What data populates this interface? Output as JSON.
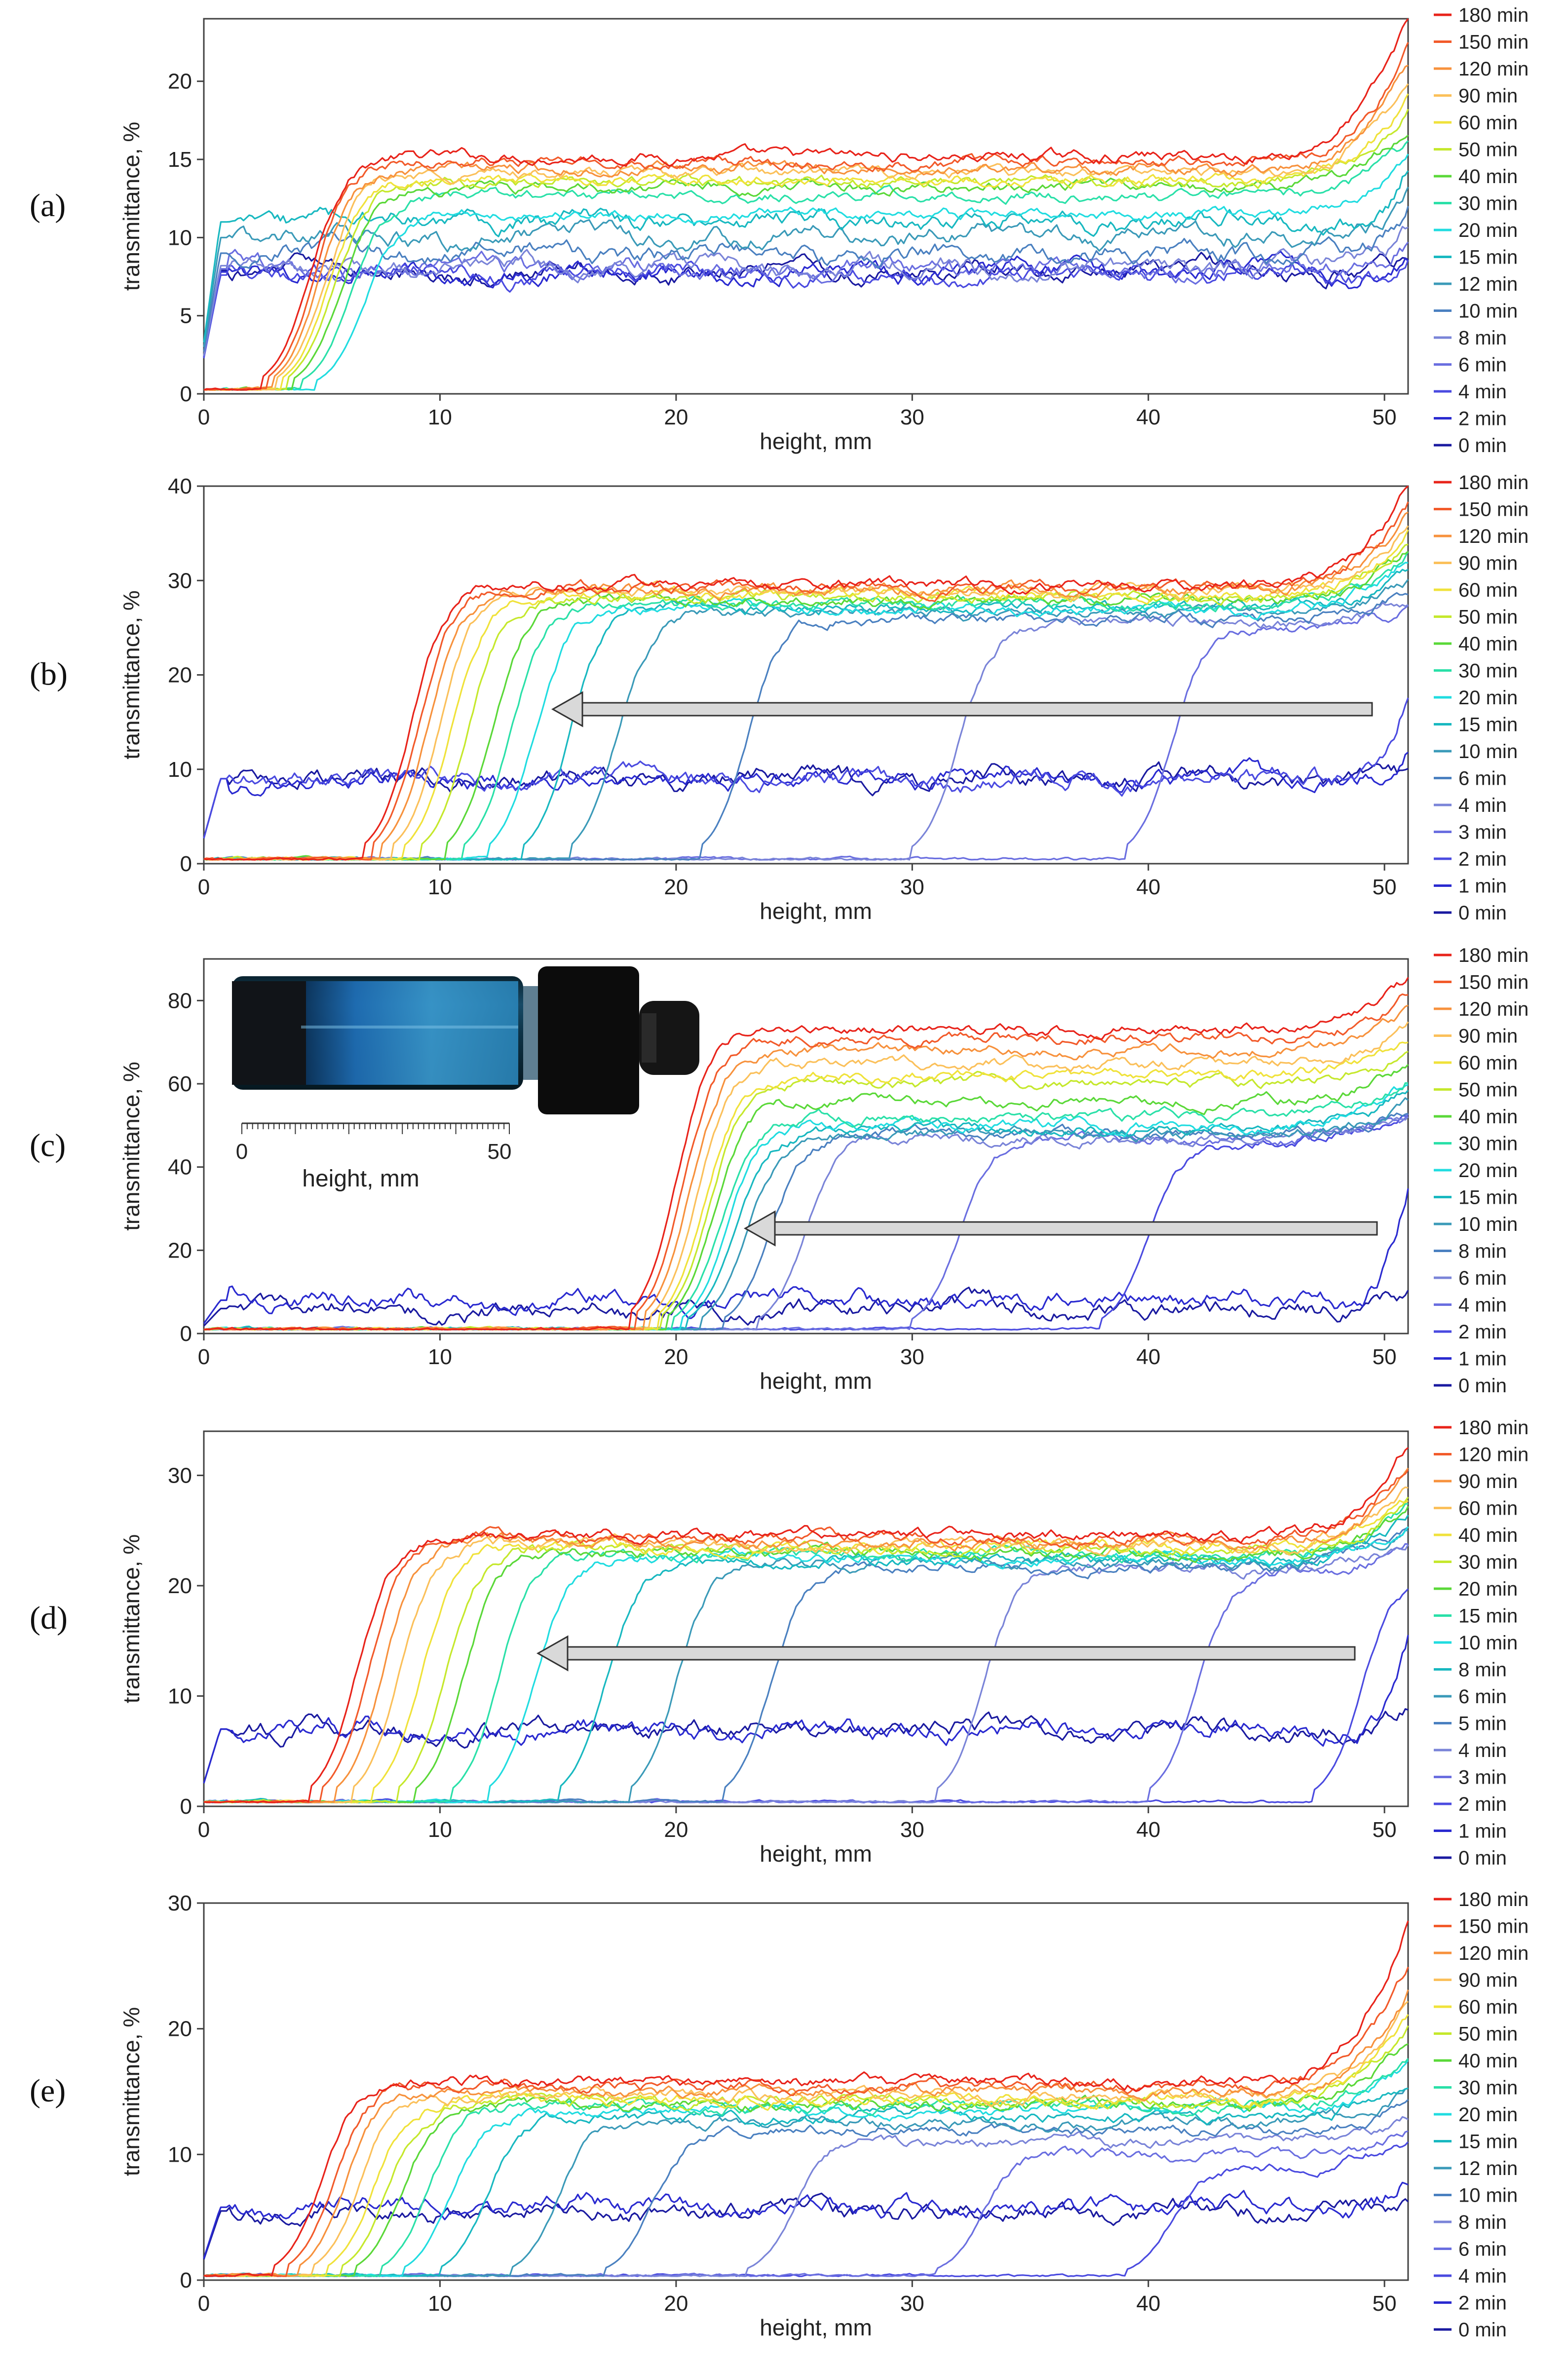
{
  "figure": {
    "panel_labels": [
      "(a)",
      "(b)",
      "(c)",
      "(d)",
      "(e)"
    ],
    "inset": {
      "scale_min": "0",
      "scale_max": "50",
      "scale_label": "height, mm"
    }
  },
  "chart_data": [
    {
      "type": "line",
      "panel": "(a)",
      "xlabel": "height, mm",
      "ylabel": "transmittance, %",
      "xlim": [
        0,
        51
      ],
      "ylim": [
        0,
        24
      ],
      "xticks": [
        0,
        10,
        20,
        30,
        40,
        50
      ],
      "yticks": [
        0,
        5,
        10,
        15,
        20
      ],
      "legend_position": "right",
      "legend": [
        "180 min",
        "150 min",
        "120 min",
        "90 min",
        "60 min",
        "50 min",
        "40 min",
        "30 min",
        "20 min",
        "15 min",
        "12 min",
        "10 min",
        "8 min",
        "6 min",
        "4 min",
        "2 min",
        "0 min"
      ],
      "series_colors": [
        "#e8231a",
        "#f25a2a",
        "#f7913c",
        "#fbc05a",
        "#f0e23a",
        "#c5e82c",
        "#5ad838",
        "#2ae0a8",
        "#20dce0",
        "#18b8c0",
        "#3a9ab8",
        "#4a80c0",
        "#7a84d8",
        "#6a6ee0",
        "#4a4ae0",
        "#2a2ad0",
        "#1a1aa0"
      ],
      "annotation": "",
      "front_x": [
        4.5,
        4.7,
        4.9,
        5.1,
        5.3,
        5.5,
        5.8,
        6.2,
        6.8,
        null,
        null,
        null,
        null,
        null,
        null,
        null,
        null
      ],
      "plateau_y": [
        15.2,
        14.8,
        14.4,
        14.1,
        13.7,
        13.5,
        13.2,
        12.7,
        11.5,
        11.0,
        10.0,
        9.0,
        8.2,
        8.0,
        7.6,
        7.8,
        7.9
      ],
      "end_y": [
        24,
        22,
        21,
        20,
        19,
        18,
        17,
        16,
        15,
        14.5,
        13,
        12,
        11,
        10,
        9,
        8.5,
        8
      ]
    },
    {
      "type": "line",
      "panel": "(b)",
      "xlabel": "height, mm",
      "ylabel": "transmittance, %",
      "xlim": [
        0,
        51
      ],
      "ylim": [
        0,
        40
      ],
      "xticks": [
        0,
        10,
        20,
        30,
        40,
        50
      ],
      "yticks": [
        0,
        10,
        20,
        30,
        40
      ],
      "legend_position": "right",
      "legend": [
        "180 min",
        "150 min",
        "120 min",
        "90 min",
        "60 min",
        "50 min",
        "40 min",
        "30 min",
        "20 min",
        "15 min",
        "10 min",
        "6 min",
        "4 min",
        "3 min",
        "2 min",
        "1 min",
        "0 min"
      ],
      "series_colors": [
        "#e8231a",
        "#f25a2a",
        "#f7913c",
        "#fbc05a",
        "#f0e23a",
        "#c5e82c",
        "#5ad838",
        "#2ae0a8",
        "#20dce0",
        "#18b8c0",
        "#3a9ab8",
        "#4a80c0",
        "#7a84d8",
        "#6a6ee0",
        "#4a4ae0",
        "#2a2ad0",
        "#1a1aa0"
      ],
      "annotation": "arrow",
      "front_x": [
        8.8,
        9.1,
        9.5,
        10.0,
        10.5,
        11.2,
        12.2,
        13.0,
        14.0,
        15.5,
        17.5,
        23.0,
        32.0,
        41.0,
        null,
        null,
        null
      ],
      "plateau_y": [
        29.5,
        29.2,
        29.0,
        28.8,
        28.5,
        28.2,
        28.0,
        27.5,
        27.0,
        27.0,
        26.5,
        26.0,
        25.5,
        25.0,
        9.0,
        9.0,
        9.0
      ],
      "end_y": [
        40,
        38,
        37,
        36,
        35,
        34,
        33,
        33,
        32,
        31,
        30,
        29,
        28,
        27,
        19,
        12,
        9
      ]
    },
    {
      "type": "line",
      "panel": "(c)",
      "xlabel": "height, mm",
      "ylabel": "transmittance, %",
      "xlim": [
        0,
        51
      ],
      "ylim": [
        0,
        90
      ],
      "xticks": [
        0,
        10,
        20,
        30,
        40,
        50
      ],
      "yticks": [
        0,
        20,
        40,
        60,
        80
      ],
      "legend_position": "right",
      "legend": [
        "180 min",
        "150 min",
        "120 min",
        "90 min",
        "60 min",
        "50 min",
        "40 min",
        "30 min",
        "20 min",
        "15 min",
        "10 min",
        "8 min",
        "6 min",
        "4 min",
        "2 min",
        "1 min",
        "0 min"
      ],
      "series_colors": [
        "#e8231a",
        "#f25a2a",
        "#f7913c",
        "#fbc05a",
        "#f0e23a",
        "#c5e82c",
        "#5ad838",
        "#2ae0a8",
        "#20dce0",
        "#18b8c0",
        "#3a9ab8",
        "#4a80c0",
        "#7a84d8",
        "#6a6ee0",
        "#4a4ae0",
        "#2a2ad0",
        "#1a1aa0"
      ],
      "annotation": "arrow",
      "front_x": [
        20.0,
        20.3,
        20.6,
        20.9,
        21.2,
        21.4,
        21.6,
        21.9,
        22.2,
        22.5,
        23.0,
        24.0,
        25.5,
        32.0,
        40.0,
        null,
        null
      ],
      "plateau_y": [
        73,
        71,
        68,
        65,
        62,
        60,
        56,
        52,
        50,
        49,
        48,
        48,
        47,
        47,
        46,
        8,
        6
      ],
      "end_y": [
        85,
        82,
        78,
        75,
        72,
        68,
        64,
        62,
        60,
        58,
        56,
        54,
        53,
        52,
        52,
        36,
        8
      ]
    },
    {
      "type": "line",
      "panel": "(d)",
      "xlabel": "height, mm",
      "ylabel": "transmittance, %",
      "xlim": [
        0,
        51
      ],
      "ylim": [
        0,
        34
      ],
      "xticks": [
        0,
        10,
        20,
        30,
        40,
        50
      ],
      "yticks": [
        0,
        10,
        20,
        30
      ],
      "legend_position": "right",
      "legend": [
        "180 min",
        "120 min",
        "90 min",
        "60 min",
        "40 min",
        "30 min",
        "20 min",
        "15 min",
        "10 min",
        "8 min",
        "6 min",
        "5 min",
        "4 min",
        "3 min",
        "2 min",
        "1 min",
        "0 min"
      ],
      "series_colors": [
        "#e8231a",
        "#f25a2a",
        "#f7913c",
        "#fbc05a",
        "#f0e23a",
        "#c5e82c",
        "#5ad838",
        "#2ae0a8",
        "#20dce0",
        "#18b8c0",
        "#3a9ab8",
        "#4a80c0",
        "#7a84d8",
        "#6a6ee0",
        "#4a4ae0",
        "#2a2ad0",
        "#1a1aa0"
      ],
      "annotation": "arrow",
      "front_x": [
        6.5,
        7.0,
        7.6,
        8.3,
        9.2,
        10.2,
        11.0,
        12.5,
        14.0,
        17.0,
        20.0,
        24.0,
        33.0,
        42.0,
        49.0,
        null,
        null
      ],
      "plateau_y": [
        24.5,
        24.3,
        24.0,
        23.8,
        23.5,
        23.2,
        23.0,
        22.8,
        22.5,
        22.3,
        22.0,
        21.8,
        21.5,
        21.0,
        20.0,
        7.0,
        7.0
      ],
      "end_y": [
        33,
        31,
        30,
        29,
        28,
        28,
        27,
        27,
        26,
        26,
        25,
        25,
        24,
        24,
        21,
        15,
        9
      ]
    },
    {
      "type": "line",
      "panel": "(e)",
      "xlabel": "height, mm",
      "ylabel": "transmittance, %",
      "xlim": [
        0,
        51
      ],
      "ylim": [
        0,
        30
      ],
      "xticks": [
        0,
        10,
        20,
        30,
        40,
        50
      ],
      "yticks": [
        0,
        10,
        20,
        30
      ],
      "legend_position": "right",
      "legend": [
        "180 min",
        "150 min",
        "120 min",
        "90 min",
        "60 min",
        "50 min",
        "40 min",
        "30 min",
        "20 min",
        "15 min",
        "12 min",
        "10 min",
        "8 min",
        "6 min",
        "4 min",
        "2 min",
        "0 min"
      ],
      "series_colors": [
        "#e8231a",
        "#f25a2a",
        "#f7913c",
        "#fbc05a",
        "#f0e23a",
        "#c5e82c",
        "#5ad838",
        "#2ae0a8",
        "#20dce0",
        "#18b8c0",
        "#3a9ab8",
        "#4a80c0",
        "#7a84d8",
        "#6a6ee0",
        "#4a4ae0",
        "#2a2ad0",
        "#1a1aa0"
      ],
      "annotation": "",
      "front_x": [
        5.0,
        5.5,
        6.0,
        6.6,
        7.2,
        7.8,
        8.4,
        9.5,
        10.5,
        12.0,
        15.0,
        19.0,
        25.0,
        33.0,
        41.0,
        null,
        null
      ],
      "plateau_y": [
        15.8,
        15.4,
        15.0,
        14.7,
        14.4,
        14.2,
        14.0,
        13.8,
        13.5,
        13.0,
        12.5,
        12.0,
        11.0,
        10.0,
        9.0,
        5.8,
        5.5
      ],
      "end_y": [
        29,
        25,
        23,
        22,
        21,
        20,
        19,
        18,
        17,
        16,
        15,
        14,
        13,
        12,
        11,
        8,
        5.5
      ]
    }
  ]
}
